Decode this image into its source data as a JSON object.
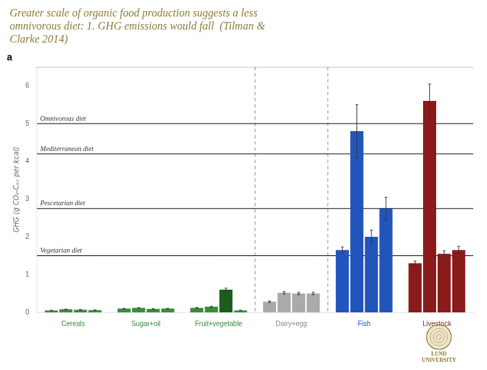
{
  "chart_data": {
    "type": "bar",
    "title": "Greater scale of organic food production suggests a less\nomnivorous diet: 1. GHG emissions would fall  (Tilman &\nClarke 2014)",
    "title_color": "#8B7d3a",
    "ylabel": "GHG (g CO₂-Cₑₓ per kcal)",
    "panel_label": "a",
    "annotations": [
      {
        "text": "LUND\nUNIVERSITY",
        "color": "#8B7536"
      }
    ],
    "categories": [
      "Cereals",
      "Sugar+oil",
      "Fruit+vegetable",
      "Dairy+egg",
      "Fish",
      "Livestock"
    ],
    "category_colors": [
      "#3a8c3a",
      "#3a8c3a",
      "#3a8c3a",
      "#888888",
      "#2255bb",
      "#8b1a1a"
    ],
    "series": [
      {
        "colors": [
          "#3a8c3a",
          "#3a8c3a",
          "#3a8c3a",
          "#aaaaaa",
          "#2255bb",
          "#8b1a1a"
        ],
        "values": [
          0.05,
          0.1,
          0.12,
          0.28,
          1.65,
          1.3
        ],
        "errors": [
          0.005,
          0.005,
          0.01,
          0.02,
          0.08,
          0.06
        ]
      },
      {
        "colors": [
          "#3a8c3a",
          "#3a8c3a",
          "#3a8c3a",
          "#aaaaaa",
          "#2255bb",
          "#8b1a1a"
        ],
        "values": [
          0.08,
          0.12,
          0.15,
          0.52,
          4.8,
          5.6
        ],
        "errors": [
          0.005,
          0.005,
          0.01,
          0.03,
          0.7,
          0.45
        ]
      },
      {
        "colors": [
          "#3a8c3a",
          "#3a8c3a",
          "#1a5c1a",
          "#aaaaaa",
          "#2255bb",
          "#8b1a1a"
        ],
        "values": [
          0.07,
          0.09,
          0.6,
          0.5,
          2.0,
          1.55
        ],
        "errors": [
          0.005,
          0.005,
          0.04,
          0.03,
          0.18,
          0.08
        ]
      },
      {
        "colors": [
          "#3a8c3a",
          "#3a8c3a",
          "#3a8c3a",
          "#aaaaaa",
          "#2255bb",
          "#8b1a1a"
        ],
        "values": [
          0.06,
          0.1,
          0.05,
          0.5,
          2.75,
          1.65
        ],
        "errors": [
          0.005,
          0.005,
          0.005,
          0.03,
          0.3,
          0.1
        ]
      }
    ],
    "hlines": [
      {
        "label": "Omnivorous diet",
        "value": 5.0,
        "color": "#000000"
      },
      {
        "label": "Mediterranean diet",
        "value": 4.2,
        "color": "#000000"
      },
      {
        "label": "Pescetarian diet",
        "value": 2.75,
        "color": "#000000"
      },
      {
        "label": "Vegetarian diet",
        "value": 1.5,
        "color": "#000000"
      }
    ],
    "dividers_after": [
      "Fruit+vegetable",
      "Dairy+egg"
    ],
    "ylim": [
      0,
      6.5
    ],
    "yticks": [
      0,
      1,
      2,
      3,
      4,
      5,
      6
    ],
    "grid": false
  }
}
